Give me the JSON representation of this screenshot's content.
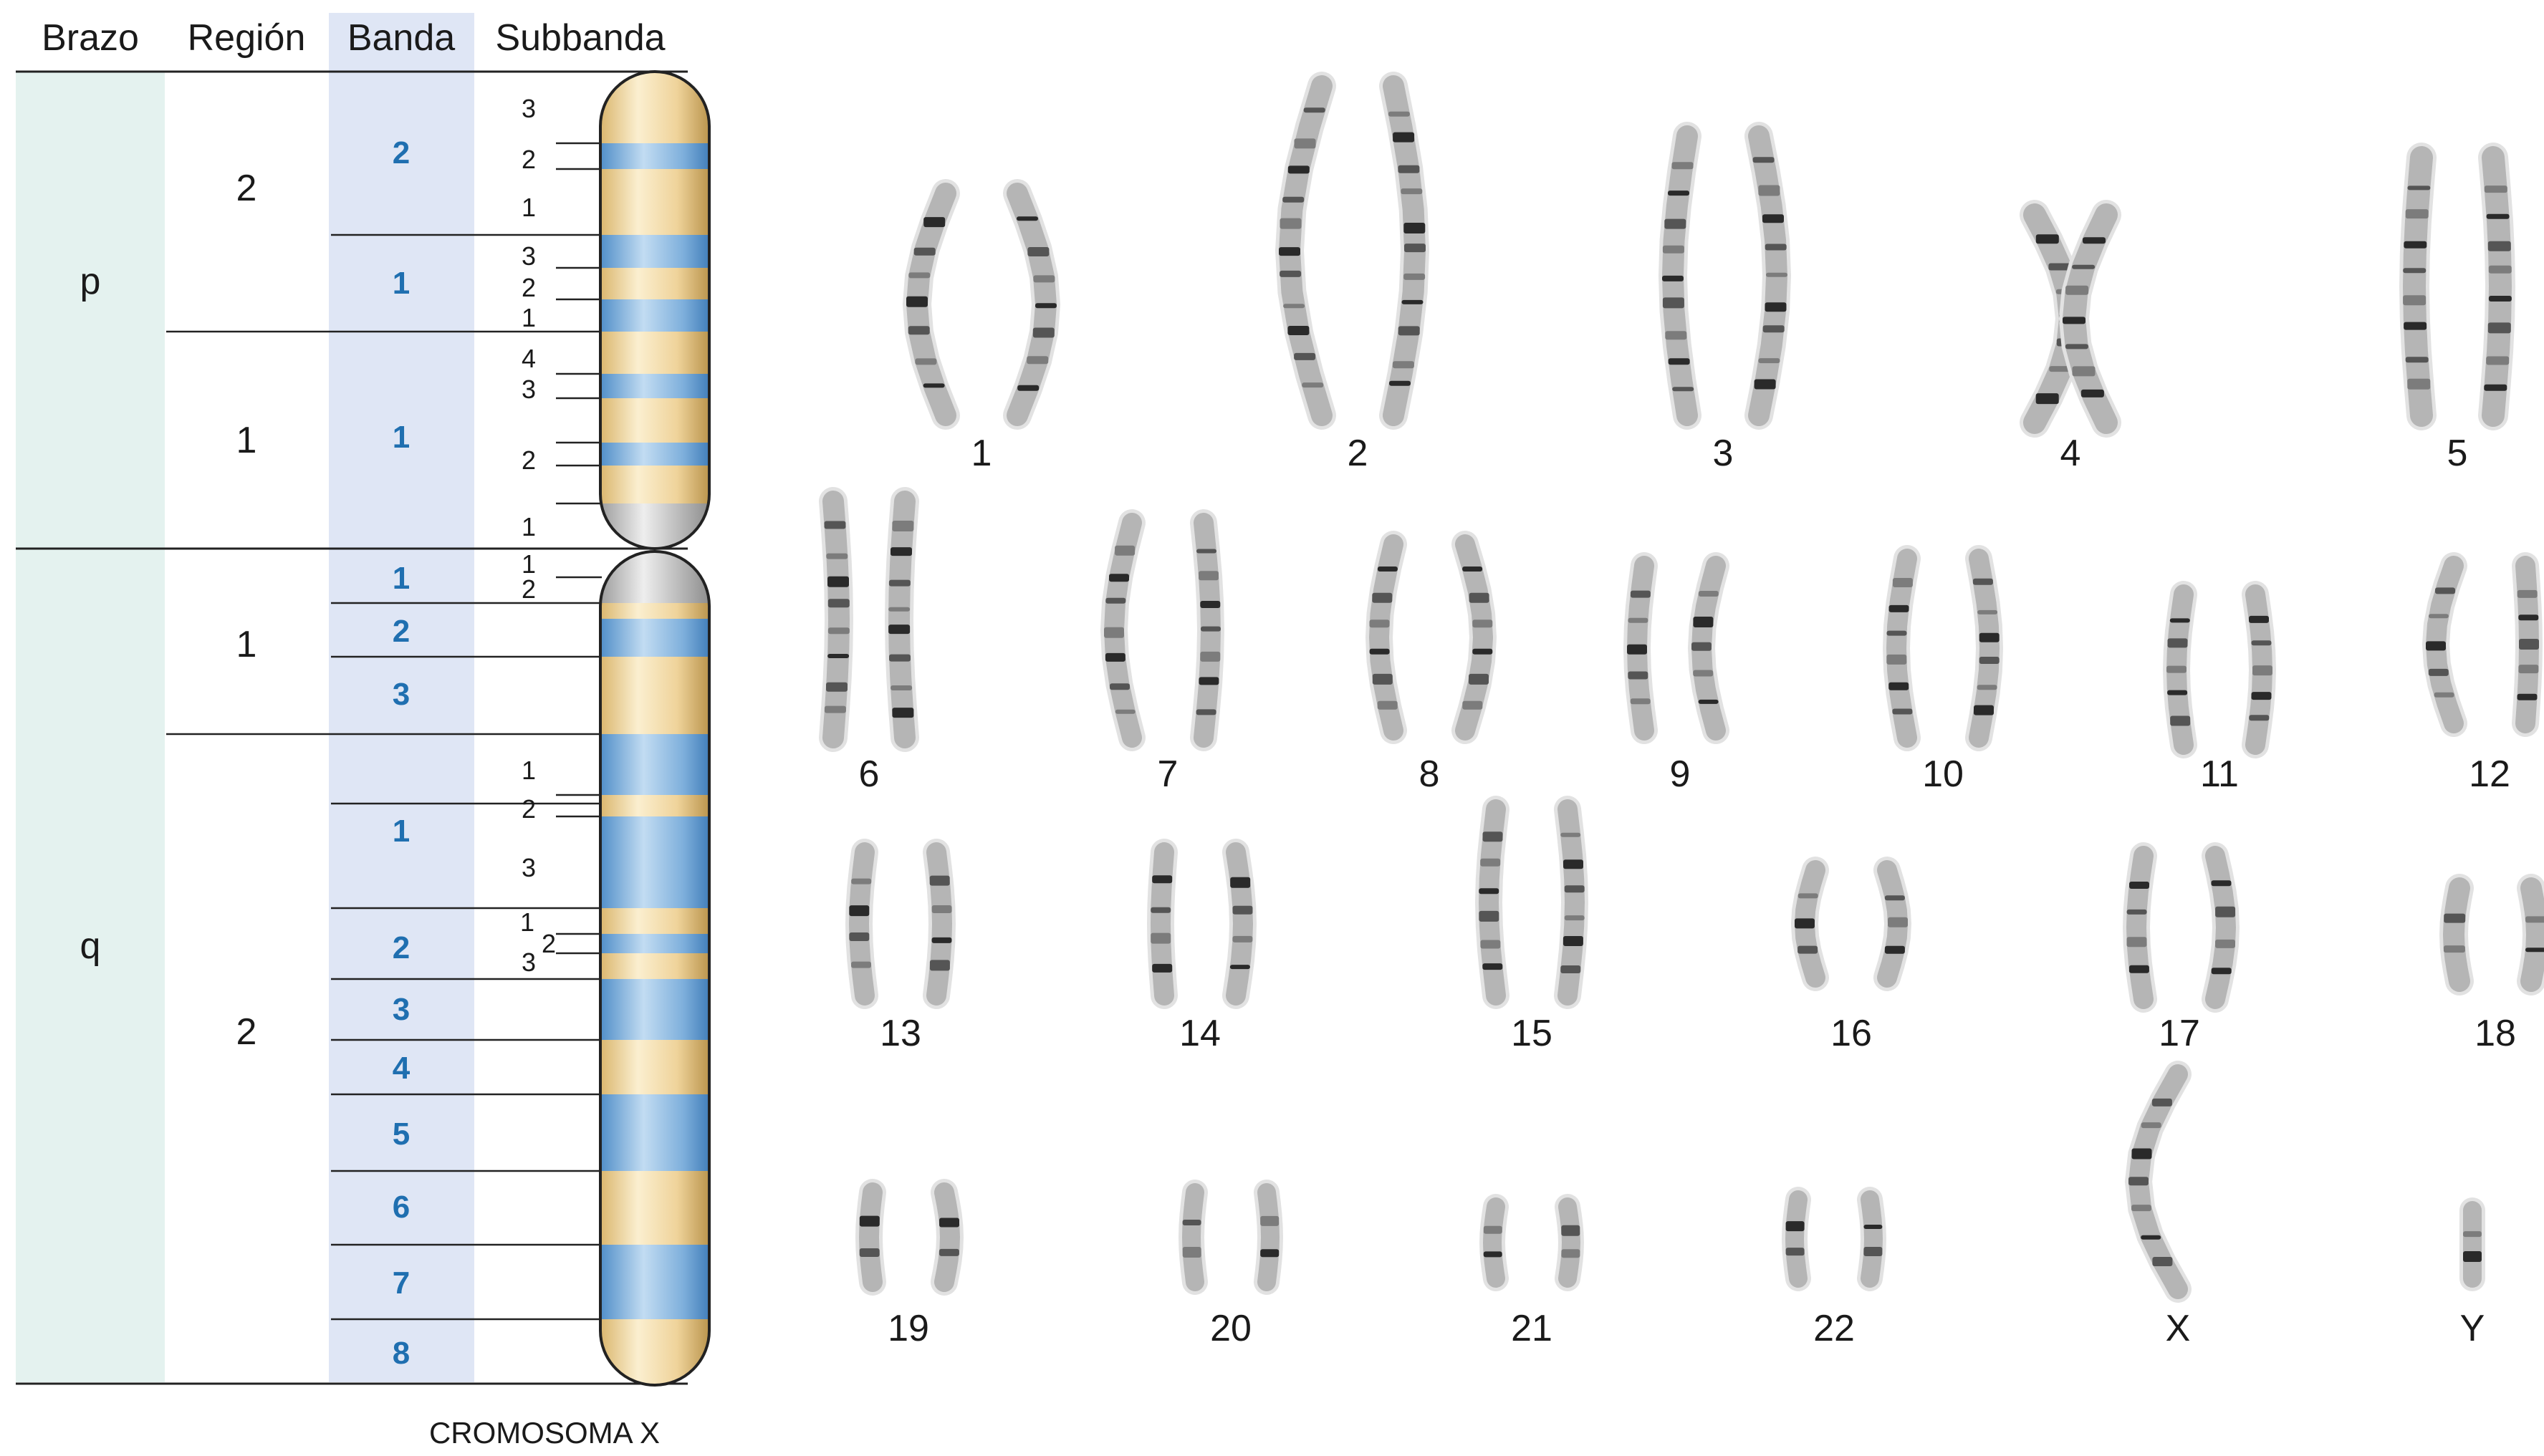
{
  "ideogram": {
    "headers": [
      "Brazo",
      "Región",
      "Banda",
      "Subbanda"
    ],
    "arms": [
      "p",
      "q"
    ],
    "p_regions": [
      "2",
      "1"
    ],
    "q_regions": [
      "1",
      "2"
    ],
    "p_bands": [
      "2",
      "1",
      "1"
    ],
    "q_bands": [
      "1",
      "2",
      "3",
      "1",
      "2",
      "3",
      "4",
      "5",
      "6",
      "7",
      "8"
    ],
    "p_subbands": [
      "3",
      "2",
      "1",
      "3",
      "2",
      "1",
      "4",
      "3",
      "2",
      "1"
    ],
    "q_subbands": [
      "1",
      "2",
      "1",
      "2",
      "3",
      "1",
      "2",
      "3"
    ],
    "caption": "CROMOSOMA X",
    "colors": {
      "arm_column": "#e4f2ef",
      "band_column": "#dfe6f5",
      "light_band": "#f2d9a3",
      "dark_band": "#7fb0dc",
      "band_text": "#1f6fb0",
      "centromere": "#c9c9c9"
    }
  },
  "karyotype": {
    "row1": [
      "1",
      "2",
      "3",
      "4",
      "5"
    ],
    "row2": [
      "6",
      "7",
      "8",
      "9",
      "10",
      "11",
      "12"
    ],
    "row3": [
      "13",
      "14",
      "15",
      "16",
      "17",
      "18"
    ],
    "row4": [
      "19",
      "20",
      "21",
      "22",
      "X",
      "Y"
    ]
  }
}
